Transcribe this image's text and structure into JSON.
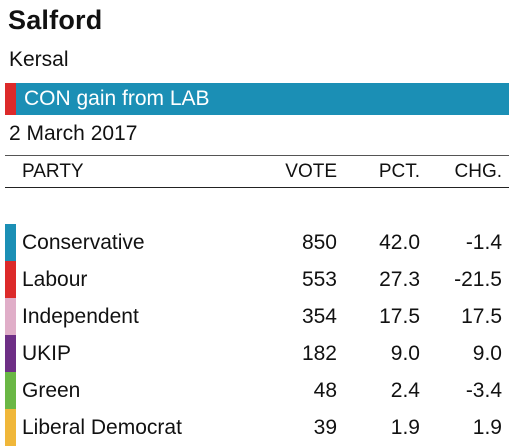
{
  "header": {
    "title": "Salford",
    "ward": "Kersal",
    "banner": {
      "text": "CON gain from LAB",
      "color": "#1b8fb5",
      "stripe_color": "#dc2a2a"
    },
    "date": "2 March 2017"
  },
  "table": {
    "columns": {
      "party": "PARTY",
      "vote": "VOTE",
      "pct": "PCT.",
      "chg": "CHG."
    },
    "rows": [
      {
        "party": "Conservative",
        "vote": "850",
        "pct": "42.0",
        "chg": "-1.4",
        "color": "#1b8fb5"
      },
      {
        "party": "Labour",
        "vote": "553",
        "pct": "27.3",
        "chg": "-21.5",
        "color": "#dc2a2a"
      },
      {
        "party": "Independent",
        "vote": "354",
        "pct": "17.5",
        "chg": "17.5",
        "color": "#e0aec8"
      },
      {
        "party": "UKIP",
        "vote": "182",
        "pct": "9.0",
        "chg": "9.0",
        "color": "#6e2f86"
      },
      {
        "party": "Green",
        "vote": "48",
        "pct": "2.4",
        "chg": "-3.4",
        "color": "#6ab745"
      },
      {
        "party": "Liberal Democrat",
        "vote": "39",
        "pct": "1.9",
        "chg": "1.9",
        "color": "#f0b73a"
      }
    ]
  }
}
